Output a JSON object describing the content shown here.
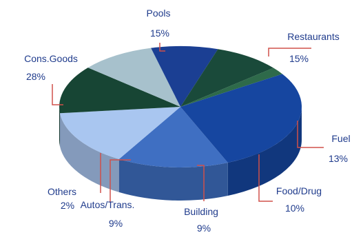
{
  "chart_data": {
    "type": "pie",
    "title": "",
    "slices": [
      {
        "label": "Pools",
        "value": 15,
        "pct_label": "15%",
        "color": "#3f6fc2"
      },
      {
        "label": "Restaurants",
        "value": 15,
        "pct_label": "15%",
        "color": "#a9c6f0"
      },
      {
        "label": "Fuel",
        "value": 13,
        "pct_label": "13%",
        "color": "#174534"
      },
      {
        "label": "Food/Drug",
        "value": 10,
        "pct_label": "10%",
        "color": "#a7c1cc"
      },
      {
        "label": "Building",
        "value": 9,
        "pct_label": "9%",
        "color": "#1b3f93"
      },
      {
        "label": "Autos/Trans.",
        "value": 9,
        "pct_label": "9%",
        "color": "#1a4a3a"
      },
      {
        "label": "Others",
        "value": 2,
        "pct_label": "2%",
        "color": "#2e6a4a"
      },
      {
        "label": "Cons.Goods",
        "value": 28,
        "pct_label": "28%",
        "color": "#1646a0"
      }
    ],
    "legend": "none",
    "three_d": true
  },
  "colors": {
    "label_text": "#1f3b8c",
    "leader_line": "#d0504a"
  }
}
